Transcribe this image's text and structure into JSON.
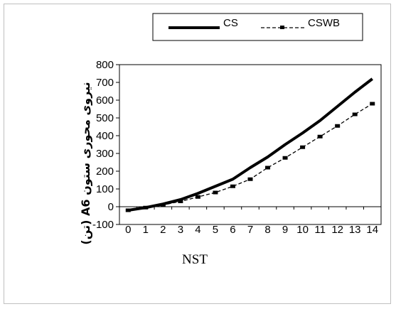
{
  "chart_data": {
    "type": "line",
    "title": "",
    "xlabel": "NST",
    "ylabel": "نیروی محوری ستون A6 (تن)",
    "x": [
      0,
      1,
      2,
      3,
      4,
      5,
      6,
      7,
      8,
      9,
      10,
      11,
      12,
      13,
      14
    ],
    "xlim": [
      0,
      14
    ],
    "ylim": [
      -100,
      800
    ],
    "yticks": [
      -100,
      0,
      100,
      200,
      300,
      400,
      500,
      600,
      700,
      800
    ],
    "grid": false,
    "legend_position": "top",
    "series": [
      {
        "name": "CS",
        "values": [
          -20,
          -5,
          15,
          40,
          75,
          115,
          155,
          220,
          280,
          350,
          415,
          485,
          565,
          645,
          720
        ],
        "color": "#000000",
        "style": "solid-thick"
      },
      {
        "name": "CSWB",
        "values": [
          -20,
          -5,
          10,
          30,
          55,
          80,
          115,
          155,
          220,
          275,
          335,
          395,
          455,
          520,
          580
        ],
        "color": "#000000",
        "style": "dashed-square-markers"
      }
    ]
  }
}
